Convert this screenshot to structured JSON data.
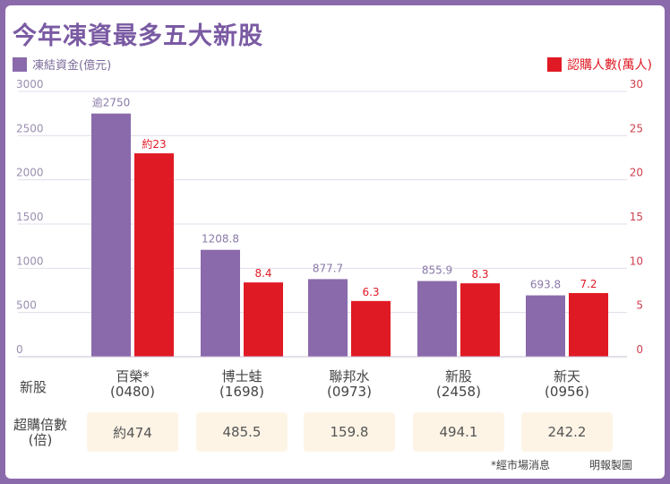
{
  "title": "今年凍資最多五大新股",
  "legend": {
    "left": "凍結資金(億元)",
    "right": "認購人數(萬人)"
  },
  "row_labels": {
    "stock": "新股",
    "pe": "超購倍數\n(倍)"
  },
  "stocks": [
    {
      "name": "百榮*",
      "code": "(0480)",
      "funds_label": "逾2750",
      "people_label": "約23",
      "pe": "約474"
    },
    {
      "name": "博士蛙",
      "code": "(1698)",
      "funds_label": "1208.8",
      "people_label": "8.4",
      "pe": "485.5"
    },
    {
      "name": "聯邦水",
      "code": "(0973)",
      "funds_label": "877.7",
      "people_label": "6.3",
      "pe": "159.8"
    },
    {
      "name": "新股",
      "code": "(2458)",
      "funds_label": "855.9",
      "people_label": "8.3",
      "pe": "494.1"
    },
    {
      "name": "新天",
      "code": "(0956)",
      "funds_label": "693.8",
      "people_label": "7.2",
      "pe": "242.2"
    }
  ],
  "footer": {
    "note": "*經市場消息",
    "source": "明報製圖"
  },
  "colors": {
    "purple": "#8a6aab",
    "red": "#e01a24"
  },
  "chart_data": {
    "type": "bar",
    "title": "今年凍資最多五大新股",
    "categories": [
      "百榮*(0480)",
      "博士蛙(1698)",
      "聯邦水(0973)",
      "新股(2458)",
      "新天(0956)"
    ],
    "series": [
      {
        "name": "凍結資金(億元)",
        "axis": "left",
        "values": [
          2750,
          1208.8,
          877.7,
          855.9,
          693.8
        ]
      },
      {
        "name": "認購人數(萬人)",
        "axis": "right",
        "values": [
          23,
          8.4,
          6.3,
          8.3,
          7.2
        ]
      }
    ],
    "y_left": {
      "ticks": [
        "3000",
        "2500",
        "2000",
        "1500",
        "1000",
        "500",
        "0"
      ],
      "range": [
        0,
        3000
      ]
    },
    "y_right": {
      "ticks": [
        "30",
        "25",
        "20",
        "15",
        "10",
        "5",
        "0"
      ],
      "range": [
        0,
        30
      ]
    },
    "grid": true,
    "legend_position": "top"
  }
}
